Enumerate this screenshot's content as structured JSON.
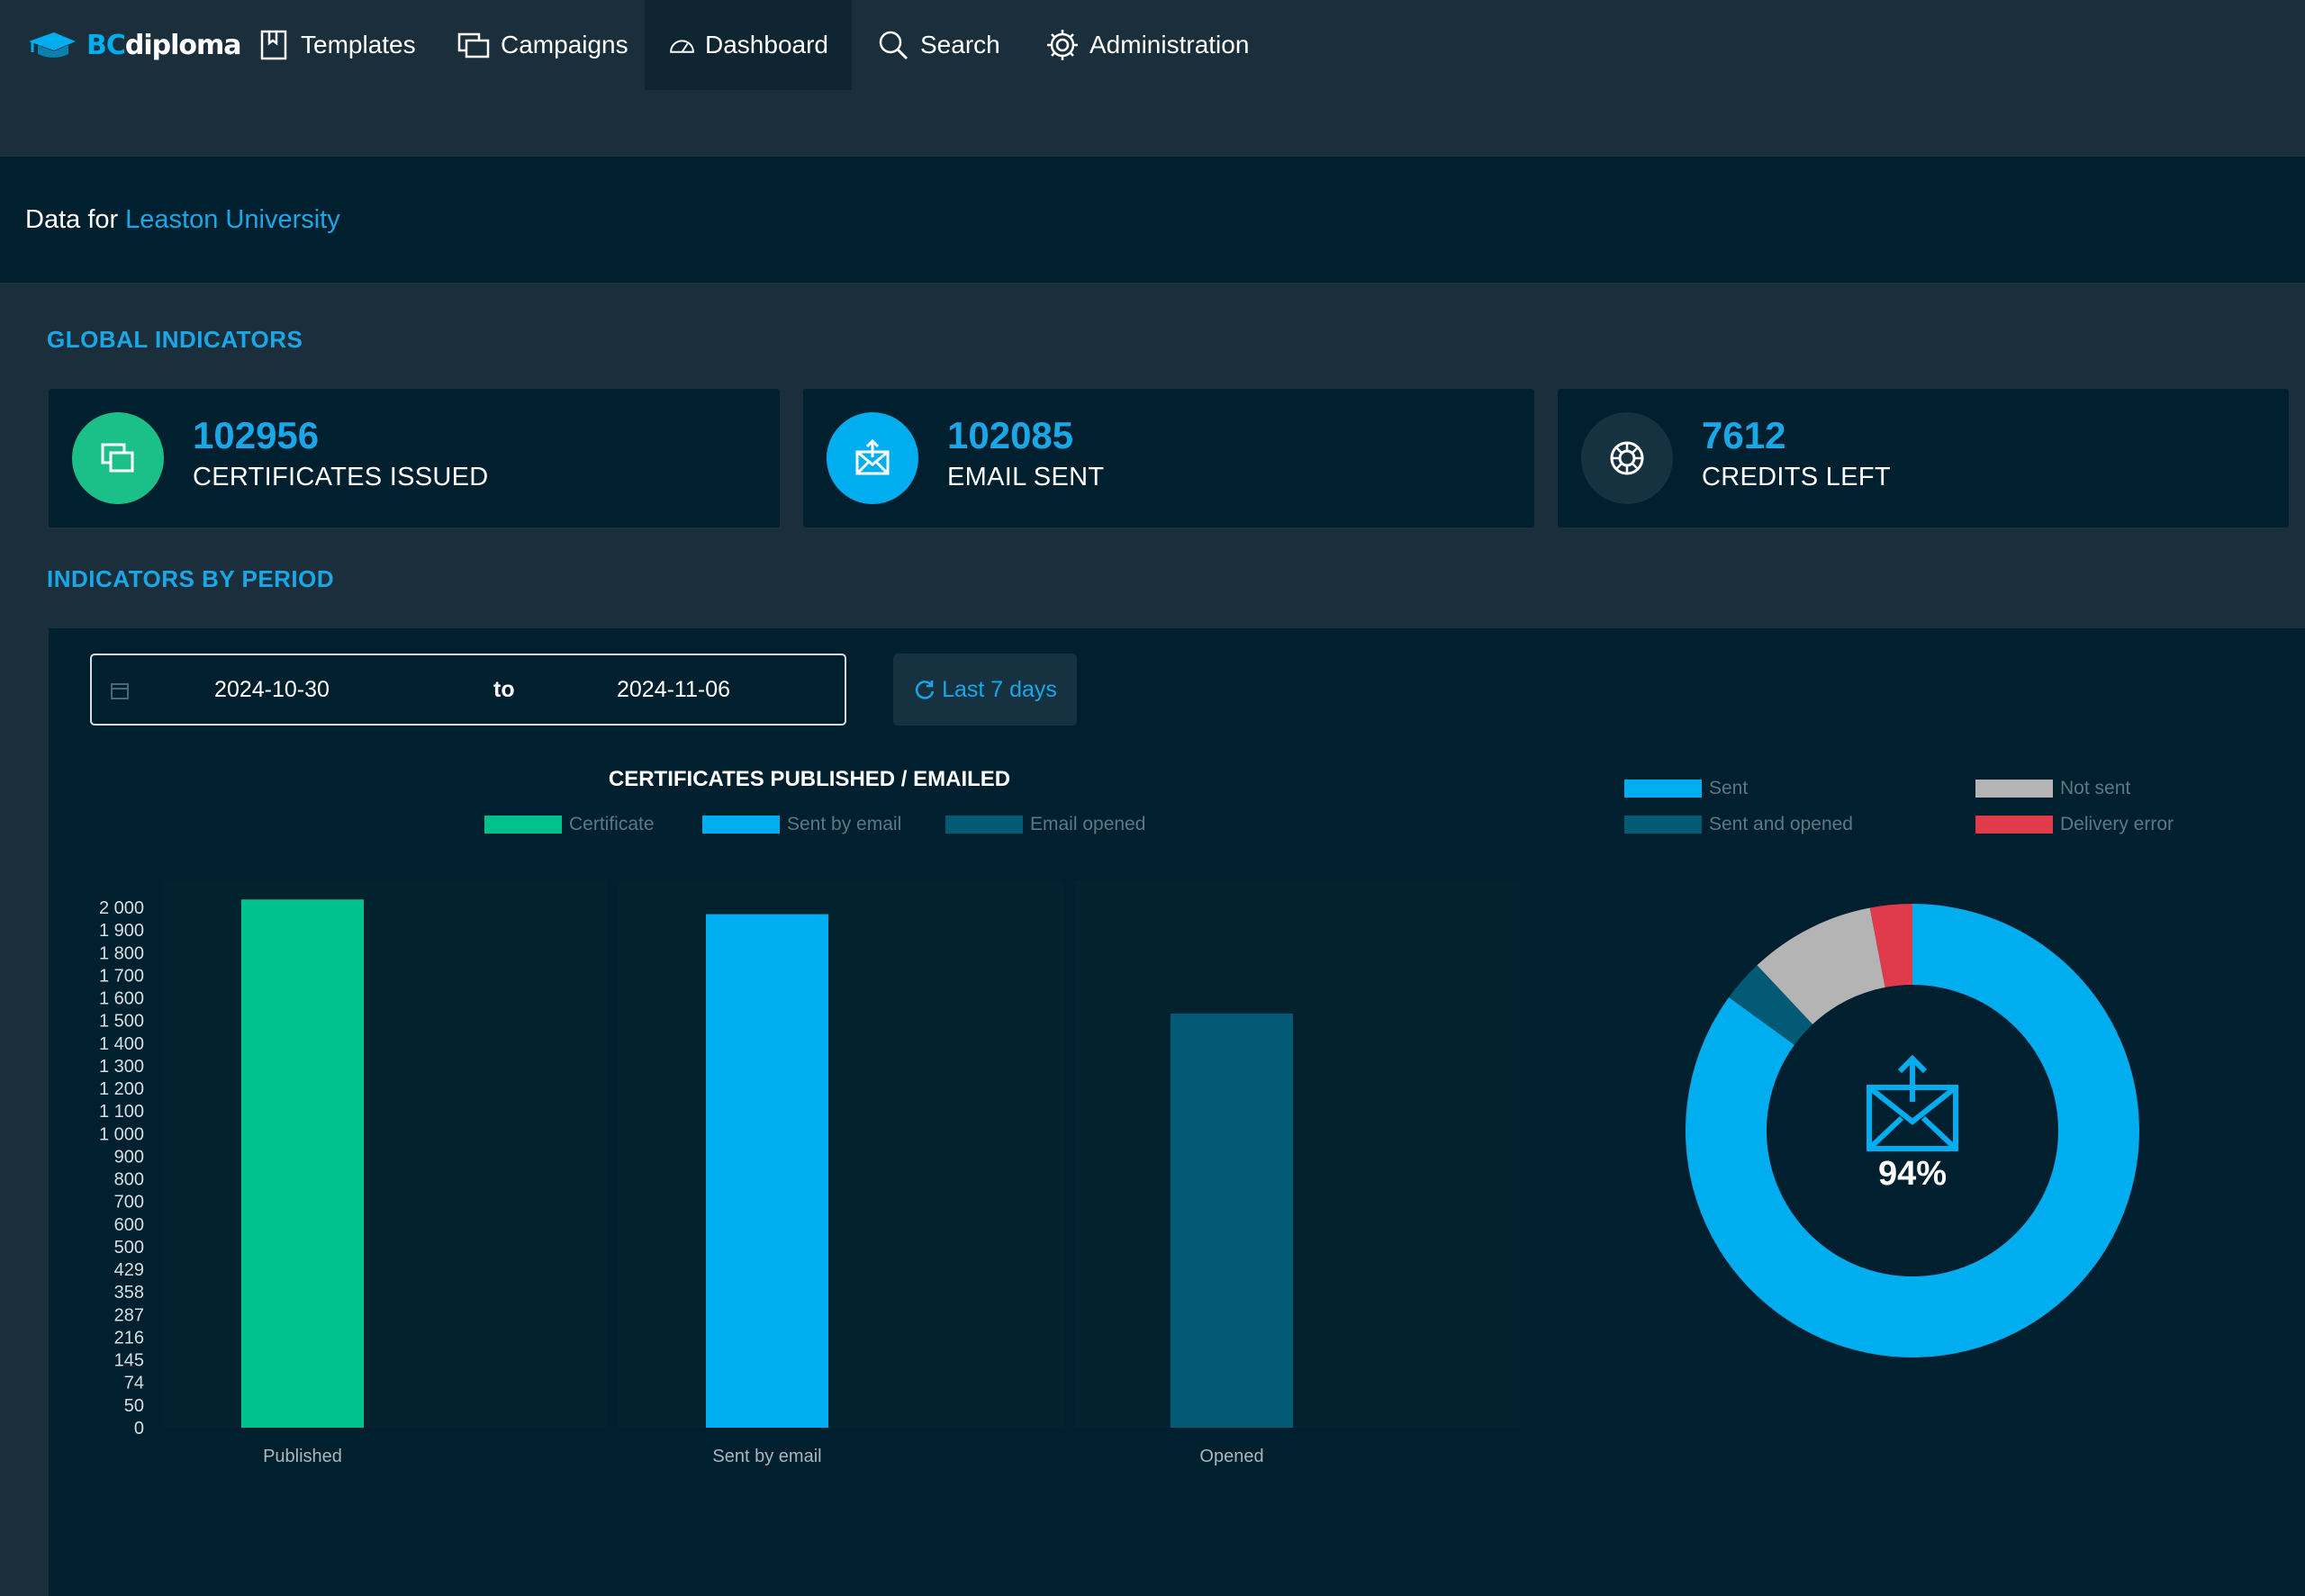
{
  "brand": {
    "logo_bc": "BC",
    "logo_rest": "diploma"
  },
  "nav": {
    "templates": "Templates",
    "campaigns": "Campaigns",
    "dashboard": "Dashboard",
    "search": "Search",
    "administration": "Administration"
  },
  "data_for": {
    "prefix": "Data for",
    "organization": "Leaston University"
  },
  "global_indicators": {
    "title": "GLOBAL INDICATORS",
    "cards": [
      {
        "value": "102956",
        "label": "CERTIFICATES ISSUED",
        "icon": "certificates-icon",
        "color": "#1bbf88"
      },
      {
        "value": "102085",
        "label": "EMAIL SENT",
        "icon": "email-send-icon",
        "color": "#00aeef"
      },
      {
        "value": "7612",
        "label": "CREDITS LEFT",
        "icon": "credits-icon",
        "color": "#16313f"
      }
    ]
  },
  "period": {
    "title": "INDICATORS BY PERIOD",
    "from": "2024-10-30",
    "to_label": "to",
    "to": "2024-11-06",
    "quick_range": "Last 7 days"
  },
  "chart_data": [
    {
      "type": "bar",
      "title": "CERTIFICATES PUBLISHED / EMAILED",
      "categories": [
        "Published",
        "Sent by email",
        "Opened"
      ],
      "series": [
        {
          "name": "Certificate",
          "color": "#00c08b",
          "values": [
            2035,
            null,
            null
          ]
        },
        {
          "name": "Sent by email",
          "color": "#00aeef",
          "values": [
            null,
            1970,
            null
          ]
        },
        {
          "name": "Email opened",
          "color": "#025a75",
          "values": [
            null,
            null,
            1530
          ]
        }
      ],
      "yticks": [
        "0",
        "50",
        "74",
        "145",
        "216",
        "287",
        "358",
        "429",
        "500",
        "600",
        "700",
        "800",
        "900",
        "1 000",
        "1 100",
        "1 200",
        "1 300",
        "1 400",
        "1 500",
        "1 600",
        "1 700",
        "1 800",
        "1 900",
        "2 000"
      ],
      "ylim": [
        0,
        2000
      ],
      "legend_position": "top",
      "grid": false
    },
    {
      "type": "pie",
      "subtype": "donut",
      "center_label": "94%",
      "center_icon": "email-send-icon",
      "slices": [
        {
          "name": "Sent",
          "value": 85,
          "color": "#00aeef"
        },
        {
          "name": "Sent and opened",
          "value": 3,
          "color": "#025a75"
        },
        {
          "name": "Not sent",
          "value": 9,
          "color": "#b4b4b4"
        },
        {
          "name": "Delivery error",
          "value": 3,
          "color": "#e03b4b"
        }
      ],
      "legend_position": "top"
    }
  ]
}
